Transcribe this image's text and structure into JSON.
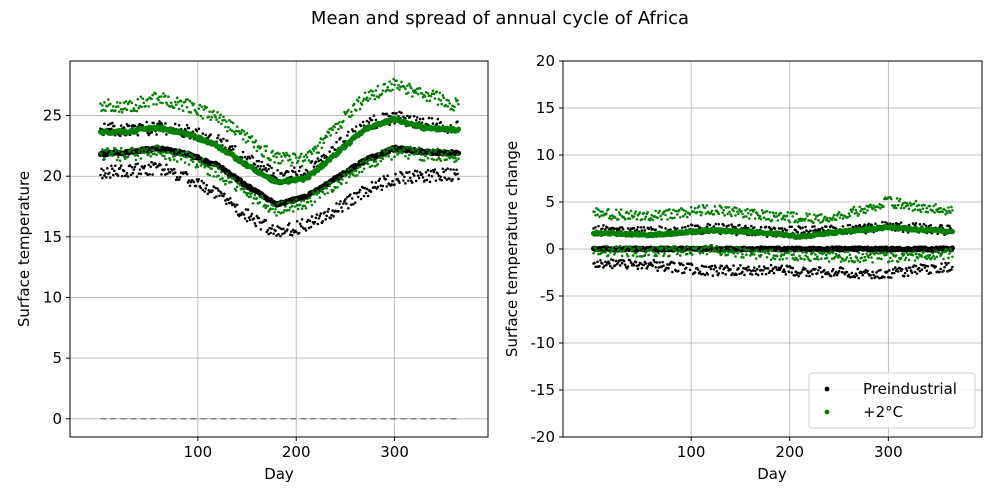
{
  "figure": {
    "suptitle": "Mean and spread of annual cycle of Africa"
  },
  "chart_data": [
    {
      "type": "scatter",
      "xlabel": "Day",
      "ylabel": "Surface temperature",
      "xlim": [
        -30,
        395
      ],
      "ylim": [
        -1.5,
        29.5
      ],
      "xticks": [
        100,
        200,
        300
      ],
      "yticks": [
        0,
        5,
        10,
        15,
        20,
        25
      ],
      "grid": true,
      "legend": null,
      "reference_line": {
        "y": 0,
        "style": "dashed",
        "color": "#808080"
      },
      "series": [
        {
          "color": "#000000",
          "role": "mean",
          "x": [
            1,
            30,
            60,
            90,
            120,
            150,
            180,
            210,
            240,
            270,
            300,
            330,
            365
          ],
          "y": [
            21.8,
            22.0,
            22.3,
            21.8,
            20.9,
            19.2,
            17.7,
            18.3,
            19.8,
            21.3,
            22.3,
            22.0,
            21.9
          ]
        },
        {
          "color": "#000000",
          "role": "upper",
          "x": [
            1,
            30,
            60,
            90,
            120,
            150,
            180,
            210,
            240,
            270,
            300,
            330,
            365
          ],
          "y": [
            23.9,
            23.8,
            24.0,
            23.7,
            23.0,
            21.5,
            20.0,
            20.3,
            22.3,
            24.3,
            24.9,
            24.3,
            24.0
          ]
        },
        {
          "color": "#000000",
          "role": "lower",
          "x": [
            1,
            30,
            60,
            90,
            120,
            150,
            180,
            210,
            240,
            270,
            300,
            330,
            365
          ],
          "y": [
            20.3,
            20.4,
            20.7,
            19.8,
            18.5,
            16.8,
            15.3,
            16.0,
            17.2,
            18.8,
            19.8,
            20.0,
            20.2
          ]
        },
        {
          "color": "#008000",
          "role": "mean",
          "x": [
            1,
            30,
            60,
            90,
            120,
            150,
            180,
            210,
            240,
            270,
            300,
            330,
            365
          ],
          "y": [
            23.6,
            23.7,
            24.0,
            23.5,
            22.5,
            20.9,
            19.5,
            19.8,
            21.8,
            23.9,
            24.7,
            24.0,
            23.8
          ]
        },
        {
          "color": "#008000",
          "role": "upper",
          "x": [
            1,
            30,
            60,
            90,
            120,
            150,
            180,
            210,
            240,
            270,
            300,
            330,
            365
          ],
          "y": [
            25.8,
            25.7,
            26.5,
            25.8,
            24.8,
            23.0,
            21.5,
            21.3,
            24.0,
            26.5,
            27.6,
            26.8,
            25.8
          ]
        },
        {
          "color": "#008000",
          "role": "lower",
          "x": [
            1,
            30,
            60,
            90,
            120,
            150,
            180,
            210,
            240,
            270,
            300,
            330,
            365
          ],
          "y": [
            21.9,
            21.8,
            22.0,
            21.5,
            20.3,
            18.5,
            17.3,
            17.8,
            19.3,
            21.0,
            22.0,
            21.8,
            21.7
          ]
        }
      ]
    },
    {
      "type": "scatter",
      "xlabel": "Day",
      "ylabel": "Surface temperature change",
      "xlim": [
        -30,
        395
      ],
      "ylim": [
        -20,
        20
      ],
      "xticks": [
        100,
        200,
        300
      ],
      "yticks": [
        -20,
        -15,
        -10,
        -5,
        0,
        5,
        10,
        15,
        20
      ],
      "grid": true,
      "legend": "lower right",
      "reference_line": {
        "y": 0,
        "style": "solid",
        "color": "#000000"
      },
      "series": [
        {
          "name": "Preindustrial",
          "color": "#000000",
          "role": "mean",
          "x": [
            1,
            365
          ],
          "y": [
            0,
            0
          ]
        },
        {
          "name": "Preindustrial",
          "color": "#000000",
          "role": "upper",
          "x": [
            1,
            60,
            120,
            180,
            240,
            300,
            365
          ],
          "y": [
            2.0,
            1.8,
            2.2,
            1.8,
            1.9,
            2.4,
            2.0
          ]
        },
        {
          "name": "Preindustrial",
          "color": "#000000",
          "role": "lower",
          "x": [
            1,
            60,
            120,
            180,
            240,
            300,
            365
          ],
          "y": [
            -1.5,
            -1.7,
            -2.3,
            -2.2,
            -2.5,
            -2.6,
            -1.8
          ]
        },
        {
          "name": "+2°C",
          "color": "#008000",
          "role": "mean",
          "x": [
            1,
            60,
            120,
            180,
            210,
            240,
            300,
            365
          ],
          "y": [
            1.7,
            1.5,
            2.0,
            1.7,
            1.3,
            1.7,
            2.3,
            1.8
          ]
        },
        {
          "name": "+2°C",
          "color": "#008000",
          "role": "upper",
          "x": [
            1,
            60,
            120,
            180,
            240,
            300,
            365
          ],
          "y": [
            3.8,
            3.5,
            4.2,
            3.5,
            3.2,
            5.0,
            4.0
          ]
        },
        {
          "name": "+2°C",
          "color": "#008000",
          "role": "lower",
          "x": [
            1,
            60,
            120,
            180,
            240,
            300,
            365
          ],
          "y": [
            -0.2,
            -0.3,
            -0.1,
            -0.6,
            -0.8,
            -0.9,
            -0.5
          ]
        }
      ]
    }
  ],
  "legend_entries": [
    {
      "label": "Preindustrial",
      "color": "#000000"
    },
    {
      "label": "+2°C",
      "color": "#008000"
    }
  ]
}
